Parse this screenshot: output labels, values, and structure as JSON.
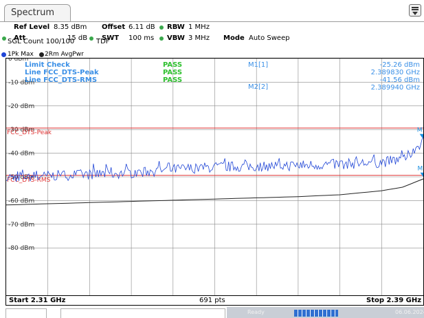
{
  "window": {
    "tab_label": "Spectrum",
    "menu_icon": "menu-icon"
  },
  "settings": {
    "ref_level_label": "Ref Level",
    "ref_level_value": "8.35 dBm",
    "offset_label": "Offset",
    "offset_value": "6.11 dB",
    "rbw_label": "RBW",
    "rbw_value": "1 MHz",
    "att_label": "Att",
    "att_value": "15 dB",
    "swt_label": "SWT",
    "swt_value": "100 ms",
    "vbw_label": "VBW",
    "vbw_value": "3 MHz",
    "mode_label": "Mode",
    "mode_value": "Auto Sweep",
    "sgl_count": "SGL Count 100/100",
    "tdf": "TDF"
  },
  "traces": [
    {
      "label": "1Pk Max",
      "color": "#1f45d6"
    },
    {
      "label": "2Rm AvgPwr",
      "color": "#222222"
    }
  ],
  "limit_table": {
    "rows": [
      {
        "name": "Limit Check",
        "result": "PASS"
      },
      {
        "name": "Line FCC_DTS-Peak",
        "result": "PASS"
      },
      {
        "name": "Line FCC_DTS-RMS",
        "result": "PASS"
      }
    ],
    "pass_color": "#2fc02f",
    "label_color": "#3a8fe6"
  },
  "markers": [
    {
      "name": "M1[1]",
      "level": "-25.26 dBm",
      "freq": "2.389830 GHz"
    },
    {
      "name": "M2[2]",
      "level": "-41.56 dBm",
      "freq": "2.389940 GHz"
    }
  ],
  "limit_lines": [
    {
      "name": "FCC_DTS-Peak",
      "level_dbm": -21.0,
      "color": "#e03030"
    },
    {
      "name": "FCC_DTS-RMS",
      "level_dbm": -41.0,
      "color": "#e03030"
    }
  ],
  "axis": {
    "y_labels": [
      "0 dBm",
      "-10 dBm",
      "-20 dBm",
      "-30 dBm",
      "-40 dBm",
      "-50 dBm",
      "-60 dBm",
      "-70 dBm",
      "-80 dBm"
    ],
    "y_ref_dbm": 8.35,
    "y_bottom_dbm": -91.65,
    "x_divisions": 10
  },
  "footer": {
    "start": "Start 2.31 GHz",
    "points": "691 pts",
    "stop": "Stop 2.39 GHz"
  },
  "chart_data": {
    "type": "line",
    "x_unit": "GHz",
    "y_unit": "dBm",
    "xlim": [
      2.31,
      2.39
    ],
    "ylim": [
      -91.65,
      8.35
    ],
    "series": [
      {
        "name": "1Pk Max",
        "x": [
          2.31,
          2.318,
          2.326,
          2.334,
          2.342,
          2.35,
          2.358,
          2.366,
          2.374,
          2.382,
          2.3865,
          2.389,
          2.39
        ],
        "y": [
          -41.8,
          -41.2,
          -40.6,
          -40.0,
          -38.5,
          -37.5,
          -37.2,
          -36.8,
          -36.3,
          -35.5,
          -34.0,
          -28.5,
          -26.8
        ]
      },
      {
        "name": "2Rm AvgPwr",
        "x": [
          2.31,
          2.318,
          2.326,
          2.334,
          2.342,
          2.35,
          2.358,
          2.366,
          2.374,
          2.382,
          2.386,
          2.39
        ],
        "y": [
          -53.5,
          -53.0,
          -52.5,
          -52.0,
          -51.5,
          -51.0,
          -50.5,
          -50.0,
          -49.2,
          -47.5,
          -46.0,
          -42.5
        ]
      }
    ],
    "markers": [
      {
        "name": "M1",
        "x": 2.38983,
        "y": -25.26
      },
      {
        "name": "M2",
        "x": 2.38994,
        "y": -41.56
      }
    ]
  },
  "statusbar": {
    "left_text": "Ready",
    "right_text": "06.06.2024"
  }
}
